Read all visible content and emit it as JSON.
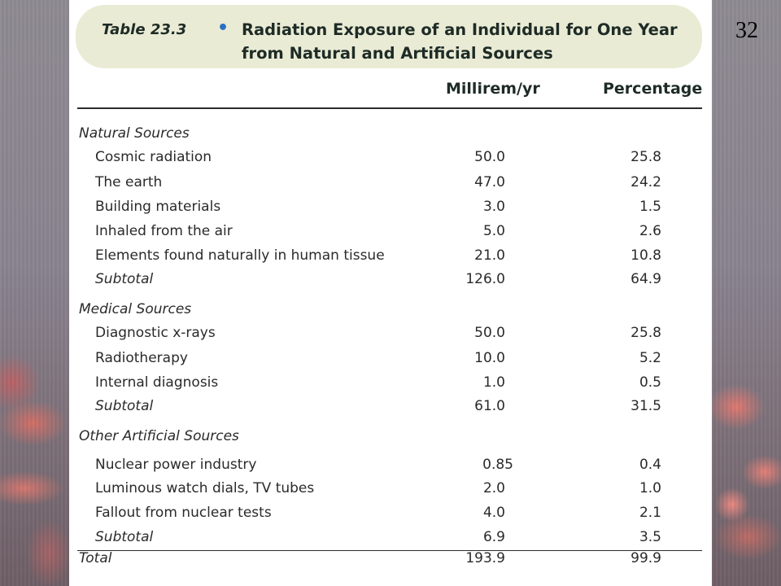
{
  "slide": {
    "page_number": "32"
  },
  "table": {
    "label": "Table 23.3",
    "bullet": "•",
    "title_line1": "Radiation Exposure of an Individual for One Year",
    "title_line2": "from Natural and Artificial Sources",
    "columns": [
      "Millirem/yr",
      "Percentage"
    ],
    "sections": [
      {
        "name": "Natural Sources",
        "rows": [
          {
            "label": "Cosmic radiation",
            "millirem": "50.0",
            "percent": "25.8"
          },
          {
            "label": "The earth",
            "millirem": "47.0",
            "percent": "24.2"
          },
          {
            "label": "Building materials",
            "millirem": "3.0",
            "percent": "1.5"
          },
          {
            "label": "Inhaled from the air",
            "millirem": "5.0",
            "percent": "2.6"
          },
          {
            "label": "Elements found naturally in human tissue",
            "millirem": "21.0",
            "percent": "10.8"
          }
        ],
        "subtotal": {
          "label": "Subtotal",
          "millirem": "126.0",
          "percent": "64.9"
        }
      },
      {
        "name": "Medical Sources",
        "rows": [
          {
            "label": "Diagnostic x-rays",
            "millirem": "50.0",
            "percent": "25.8"
          },
          {
            "label": "Radiotherapy",
            "millirem": "10.0",
            "percent": "5.2"
          },
          {
            "label": "Internal diagnosis",
            "millirem": "1.0",
            "percent": "0.5"
          }
        ],
        "subtotal": {
          "label": "Subtotal",
          "millirem": "61.0",
          "percent": "31.5"
        }
      },
      {
        "name": "Other Artificial Sources",
        "rows": [
          {
            "label": "Nuclear power industry",
            "millirem": "0.85",
            "percent": "0.4"
          },
          {
            "label": "Luminous watch dials, TV tubes",
            "millirem": "2.0",
            "percent": "1.0"
          },
          {
            "label": "Fallout from nuclear tests",
            "millirem": "4.0",
            "percent": "2.1"
          }
        ],
        "subtotal": {
          "label": "Subtotal",
          "millirem": "6.9",
          "percent": "3.5"
        }
      }
    ],
    "total": {
      "label": "Total",
      "millirem": "193.9",
      "percent": "99.9"
    }
  }
}
